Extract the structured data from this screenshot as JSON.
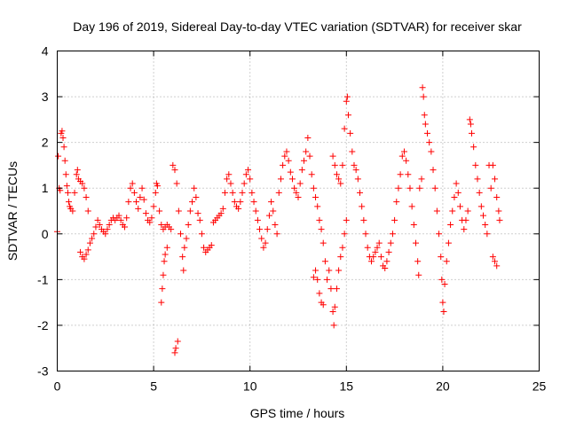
{
  "chart_data": {
    "type": "scatter",
    "title": "Day 196 of 2019, Sidereal Day-to-day VTEC variation (SDTVAR) for receiver skar",
    "xlabel": "GPS time / hours",
    "ylabel": "SDTVAR / TECUs",
    "xlim": [
      0,
      25
    ],
    "ylim": [
      -3,
      4
    ],
    "xticks": [
      0,
      5,
      10,
      15,
      20,
      25
    ],
    "yticks": [
      -3,
      -2,
      -1,
      0,
      1,
      2,
      3,
      4
    ],
    "xtick_labels": [
      "0",
      "5",
      "10",
      "15",
      "20",
      "25"
    ],
    "ytick_labels": [
      "-3",
      "-2",
      "-1",
      "0",
      "1",
      "2",
      "3",
      "4"
    ],
    "grid": true,
    "marker": "+",
    "marker_color": "#ff0000",
    "series": [
      {
        "name": "SDTVAR",
        "points": [
          [
            0.0,
            0.05
          ],
          [
            0.05,
            1.7
          ],
          [
            0.1,
            1.0
          ],
          [
            0.15,
            0.95
          ],
          [
            0.2,
            2.2
          ],
          [
            0.25,
            2.25
          ],
          [
            0.3,
            2.1
          ],
          [
            0.35,
            1.9
          ],
          [
            0.4,
            1.6
          ],
          [
            0.45,
            1.3
          ],
          [
            0.5,
            1.05
          ],
          [
            0.55,
            0.9
          ],
          [
            0.6,
            0.7
          ],
          [
            0.65,
            0.6
          ],
          [
            0.7,
            0.55
          ],
          [
            0.8,
            0.5
          ],
          [
            0.9,
            0.9
          ],
          [
            1.0,
            1.3
          ],
          [
            1.05,
            1.4
          ],
          [
            1.1,
            1.2
          ],
          [
            1.2,
            1.15
          ],
          [
            1.3,
            1.1
          ],
          [
            1.4,
            1.0
          ],
          [
            1.5,
            0.8
          ],
          [
            1.6,
            0.5
          ],
          [
            1.2,
            -0.4
          ],
          [
            1.3,
            -0.5
          ],
          [
            1.4,
            -0.55
          ],
          [
            1.5,
            -0.45
          ],
          [
            1.6,
            -0.35
          ],
          [
            1.7,
            -0.2
          ],
          [
            1.8,
            -0.1
          ],
          [
            1.9,
            0.0
          ],
          [
            2.0,
            0.15
          ],
          [
            2.1,
            0.3
          ],
          [
            2.2,
            0.2
          ],
          [
            2.3,
            0.1
          ],
          [
            2.4,
            0.05
          ],
          [
            2.5,
            0.0
          ],
          [
            2.6,
            0.1
          ],
          [
            2.7,
            0.2
          ],
          [
            2.8,
            0.3
          ],
          [
            2.9,
            0.35
          ],
          [
            3.0,
            0.3
          ],
          [
            3.1,
            0.35
          ],
          [
            3.2,
            0.4
          ],
          [
            3.3,
            0.3
          ],
          [
            3.4,
            0.2
          ],
          [
            3.5,
            0.15
          ],
          [
            3.6,
            0.35
          ],
          [
            3.7,
            0.7
          ],
          [
            3.8,
            1.0
          ],
          [
            3.9,
            1.1
          ],
          [
            4.0,
            0.9
          ],
          [
            4.1,
            0.7
          ],
          [
            4.2,
            0.55
          ],
          [
            4.3,
            0.8
          ],
          [
            4.4,
            1.0
          ],
          [
            4.5,
            0.75
          ],
          [
            4.6,
            0.45
          ],
          [
            4.7,
            0.3
          ],
          [
            4.8,
            0.25
          ],
          [
            4.9,
            0.35
          ],
          [
            5.0,
            0.6
          ],
          [
            5.1,
            0.9
          ],
          [
            5.15,
            1.1
          ],
          [
            5.2,
            1.05
          ],
          [
            5.3,
            0.5
          ],
          [
            5.4,
            0.2
          ],
          [
            5.5,
            0.1
          ],
          [
            5.6,
            0.15
          ],
          [
            5.7,
            0.2
          ],
          [
            5.8,
            0.15
          ],
          [
            5.9,
            0.1
          ],
          [
            5.4,
            -1.5
          ],
          [
            5.45,
            -1.2
          ],
          [
            5.5,
            -0.9
          ],
          [
            5.55,
            -0.6
          ],
          [
            5.6,
            -0.45
          ],
          [
            5.7,
            -0.3
          ],
          [
            6.0,
            1.5
          ],
          [
            6.1,
            1.4
          ],
          [
            6.2,
            1.1
          ],
          [
            6.3,
            0.5
          ],
          [
            6.4,
            0.0
          ],
          [
            6.5,
            -0.5
          ],
          [
            6.55,
            -0.8
          ],
          [
            6.1,
            -2.6
          ],
          [
            6.15,
            -2.5
          ],
          [
            6.25,
            -2.35
          ],
          [
            6.6,
            -0.3
          ],
          [
            6.7,
            -0.1
          ],
          [
            6.8,
            0.2
          ],
          [
            6.9,
            0.5
          ],
          [
            7.0,
            0.7
          ],
          [
            7.1,
            1.0
          ],
          [
            7.2,
            0.8
          ],
          [
            7.3,
            0.45
          ],
          [
            7.4,
            0.3
          ],
          [
            7.5,
            0.0
          ],
          [
            7.6,
            -0.3
          ],
          [
            7.7,
            -0.4
          ],
          [
            7.8,
            -0.35
          ],
          [
            7.9,
            -0.3
          ],
          [
            8.0,
            -0.25
          ],
          [
            8.1,
            0.25
          ],
          [
            8.2,
            0.3
          ],
          [
            8.3,
            0.35
          ],
          [
            8.4,
            0.4
          ],
          [
            8.5,
            0.45
          ],
          [
            8.6,
            0.55
          ],
          [
            8.7,
            0.9
          ],
          [
            8.8,
            1.2
          ],
          [
            8.9,
            1.3
          ],
          [
            9.0,
            1.1
          ],
          [
            9.1,
            0.9
          ],
          [
            9.2,
            0.7
          ],
          [
            9.3,
            0.6
          ],
          [
            9.4,
            0.55
          ],
          [
            9.5,
            0.7
          ],
          [
            9.6,
            0.9
          ],
          [
            9.7,
            1.1
          ],
          [
            9.8,
            1.3
          ],
          [
            9.9,
            1.4
          ],
          [
            10.0,
            1.2
          ],
          [
            10.1,
            0.9
          ],
          [
            10.2,
            0.7
          ],
          [
            10.3,
            0.5
          ],
          [
            10.4,
            0.3
          ],
          [
            10.5,
            0.1
          ],
          [
            10.6,
            -0.1
          ],
          [
            10.7,
            -0.3
          ],
          [
            10.8,
            -0.2
          ],
          [
            10.9,
            0.1
          ],
          [
            11.0,
            0.4
          ],
          [
            11.1,
            0.7
          ],
          [
            11.2,
            0.5
          ],
          [
            11.3,
            0.2
          ],
          [
            11.4,
            0.0
          ],
          [
            11.5,
            0.9
          ],
          [
            11.6,
            1.2
          ],
          [
            11.7,
            1.5
          ],
          [
            11.8,
            1.7
          ],
          [
            11.9,
            1.8
          ],
          [
            12.0,
            1.6
          ],
          [
            12.1,
            1.35
          ],
          [
            12.2,
            1.2
          ],
          [
            12.3,
            1.0
          ],
          [
            12.4,
            0.9
          ],
          [
            12.5,
            0.8
          ],
          [
            12.6,
            1.1
          ],
          [
            12.7,
            1.4
          ],
          [
            12.8,
            1.6
          ],
          [
            12.9,
            1.8
          ],
          [
            13.0,
            2.1
          ],
          [
            13.1,
            1.7
          ],
          [
            13.2,
            1.3
          ],
          [
            13.3,
            1.0
          ],
          [
            13.4,
            0.8
          ],
          [
            13.5,
            0.6
          ],
          [
            13.6,
            0.3
          ],
          [
            13.7,
            0.1
          ],
          [
            13.8,
            -0.2
          ],
          [
            13.9,
            -0.6
          ],
          [
            13.3,
            -0.95
          ],
          [
            13.4,
            -0.8
          ],
          [
            13.5,
            -1.0
          ],
          [
            13.6,
            -1.3
          ],
          [
            13.7,
            -1.5
          ],
          [
            13.8,
            -1.55
          ],
          [
            14.0,
            -1.0
          ],
          [
            14.1,
            -0.8
          ],
          [
            14.2,
            -1.2
          ],
          [
            14.3,
            -1.7
          ],
          [
            14.35,
            -2.0
          ],
          [
            14.4,
            -1.6
          ],
          [
            14.5,
            -1.2
          ],
          [
            14.6,
            -0.8
          ],
          [
            14.7,
            -0.5
          ],
          [
            14.8,
            -0.3
          ],
          [
            14.9,
            0.0
          ],
          [
            15.0,
            0.3
          ],
          [
            14.3,
            1.7
          ],
          [
            14.4,
            1.5
          ],
          [
            14.5,
            1.3
          ],
          [
            14.6,
            1.2
          ],
          [
            14.7,
            1.1
          ],
          [
            14.8,
            1.5
          ],
          [
            14.9,
            2.3
          ],
          [
            15.0,
            2.9
          ],
          [
            15.05,
            3.0
          ],
          [
            15.1,
            2.6
          ],
          [
            15.2,
            2.2
          ],
          [
            15.3,
            1.8
          ],
          [
            15.4,
            1.5
          ],
          [
            15.5,
            1.4
          ],
          [
            15.6,
            1.2
          ],
          [
            15.7,
            0.9
          ],
          [
            15.8,
            0.6
          ],
          [
            15.9,
            0.3
          ],
          [
            16.0,
            0.0
          ],
          [
            16.1,
            -0.3
          ],
          [
            16.2,
            -0.5
          ],
          [
            16.3,
            -0.6
          ],
          [
            16.4,
            -0.5
          ],
          [
            16.5,
            -0.4
          ],
          [
            16.6,
            -0.3
          ],
          [
            16.7,
            -0.2
          ],
          [
            16.8,
            -0.5
          ],
          [
            16.9,
            -0.7
          ],
          [
            17.0,
            -0.75
          ],
          [
            17.1,
            -0.6
          ],
          [
            17.2,
            -0.4
          ],
          [
            17.3,
            -0.2
          ],
          [
            17.4,
            0.0
          ],
          [
            17.5,
            0.3
          ],
          [
            17.6,
            0.7
          ],
          [
            17.7,
            1.0
          ],
          [
            17.8,
            1.3
          ],
          [
            17.9,
            1.7
          ],
          [
            18.0,
            1.8
          ],
          [
            18.1,
            1.6
          ],
          [
            18.2,
            1.3
          ],
          [
            18.3,
            1.0
          ],
          [
            18.4,
            0.6
          ],
          [
            18.5,
            0.2
          ],
          [
            18.6,
            -0.2
          ],
          [
            18.7,
            -0.6
          ],
          [
            18.75,
            -0.9
          ],
          [
            18.8,
            1.0
          ],
          [
            18.9,
            1.2
          ],
          [
            18.95,
            3.2
          ],
          [
            19.0,
            3.0
          ],
          [
            19.05,
            2.6
          ],
          [
            19.1,
            2.4
          ],
          [
            19.2,
            2.2
          ],
          [
            19.3,
            2.0
          ],
          [
            19.4,
            1.8
          ],
          [
            19.5,
            1.4
          ],
          [
            19.6,
            1.0
          ],
          [
            19.7,
            0.5
          ],
          [
            19.8,
            0.0
          ],
          [
            19.9,
            -0.5
          ],
          [
            19.95,
            -1.0
          ],
          [
            20.0,
            -1.5
          ],
          [
            20.05,
            -1.7
          ],
          [
            20.1,
            -1.1
          ],
          [
            20.2,
            -0.6
          ],
          [
            20.3,
            -0.2
          ],
          [
            20.4,
            0.2
          ],
          [
            20.5,
            0.5
          ],
          [
            20.6,
            0.8
          ],
          [
            20.7,
            1.1
          ],
          [
            20.8,
            0.9
          ],
          [
            20.9,
            0.6
          ],
          [
            21.0,
            0.3
          ],
          [
            21.1,
            0.1
          ],
          [
            21.2,
            0.3
          ],
          [
            21.3,
            0.5
          ],
          [
            21.4,
            2.5
          ],
          [
            21.45,
            2.4
          ],
          [
            21.5,
            2.2
          ],
          [
            21.6,
            1.9
          ],
          [
            21.7,
            1.5
          ],
          [
            21.8,
            1.2
          ],
          [
            21.9,
            0.9
          ],
          [
            22.0,
            0.6
          ],
          [
            22.1,
            0.4
          ],
          [
            22.2,
            0.2
          ],
          [
            22.3,
            0.0
          ],
          [
            22.4,
            1.5
          ],
          [
            22.5,
            1.0
          ],
          [
            22.6,
            1.5
          ],
          [
            22.7,
            1.2
          ],
          [
            22.8,
            0.8
          ],
          [
            22.9,
            0.5
          ],
          [
            22.95,
            0.3
          ],
          [
            22.6,
            -0.5
          ],
          [
            22.7,
            -0.6
          ],
          [
            22.8,
            -0.7
          ]
        ]
      }
    ]
  }
}
